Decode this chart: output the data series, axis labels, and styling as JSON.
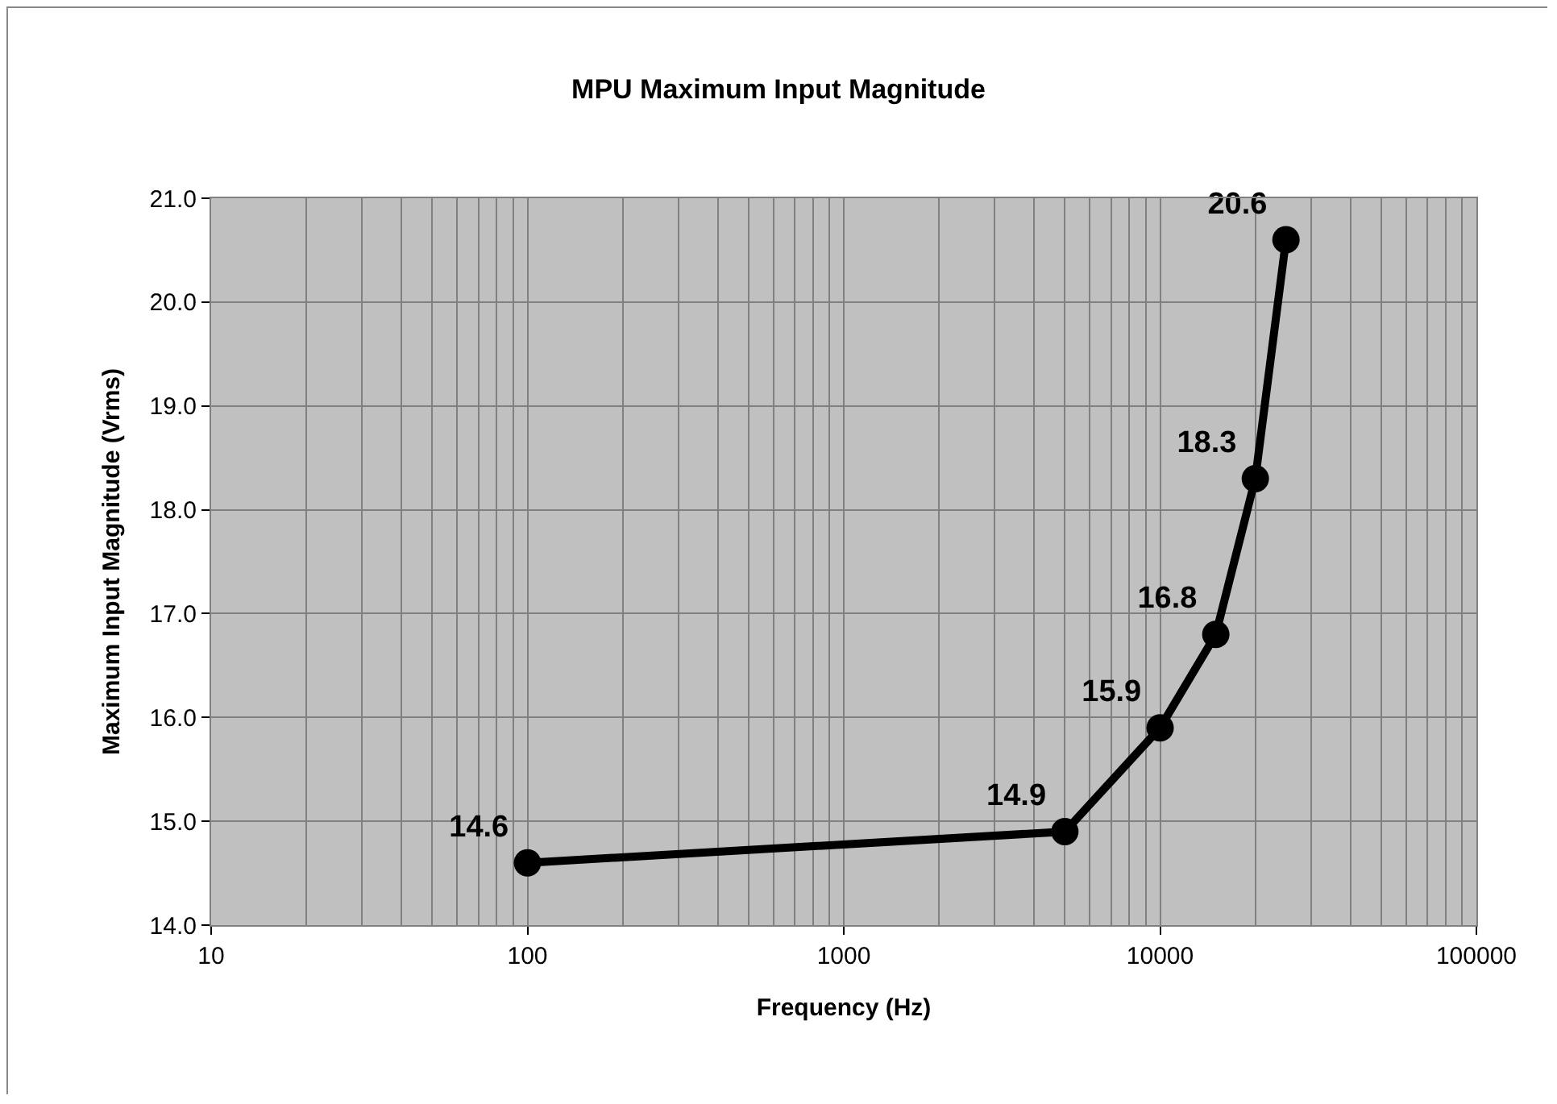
{
  "chart_data": {
    "type": "line",
    "title": "MPU Maximum Input Magnitude",
    "xlabel": "Frequency (Hz)",
    "ylabel": "Maximum Input Magnitude (Vrms)",
    "x": [
      100,
      5000,
      10000,
      15000,
      20000,
      25000
    ],
    "series": [
      {
        "color": "#000000",
        "values": [
          14.6,
          14.9,
          15.9,
          16.8,
          18.3,
          20.6
        ]
      }
    ],
    "log": "x",
    "xlim": [
      10,
      100000
    ],
    "xticks": [
      10,
      100,
      1000,
      10000,
      100000
    ],
    "ylim": [
      14,
      21
    ],
    "yticks": [
      {
        "value": 14,
        "label": "14.0"
      },
      {
        "value": 15,
        "label": "15.0"
      },
      {
        "value": 16,
        "label": "16.0"
      },
      {
        "value": 17,
        "label": "17.0"
      },
      {
        "value": 18,
        "label": "18.0"
      },
      {
        "value": 19,
        "label": "19.0"
      },
      {
        "value": 20,
        "label": "20.0"
      },
      {
        "value": 21,
        "label": "21.0"
      }
    ],
    "grid": true,
    "marker": "circle",
    "line_style": "solid",
    "data_labels": true
  }
}
